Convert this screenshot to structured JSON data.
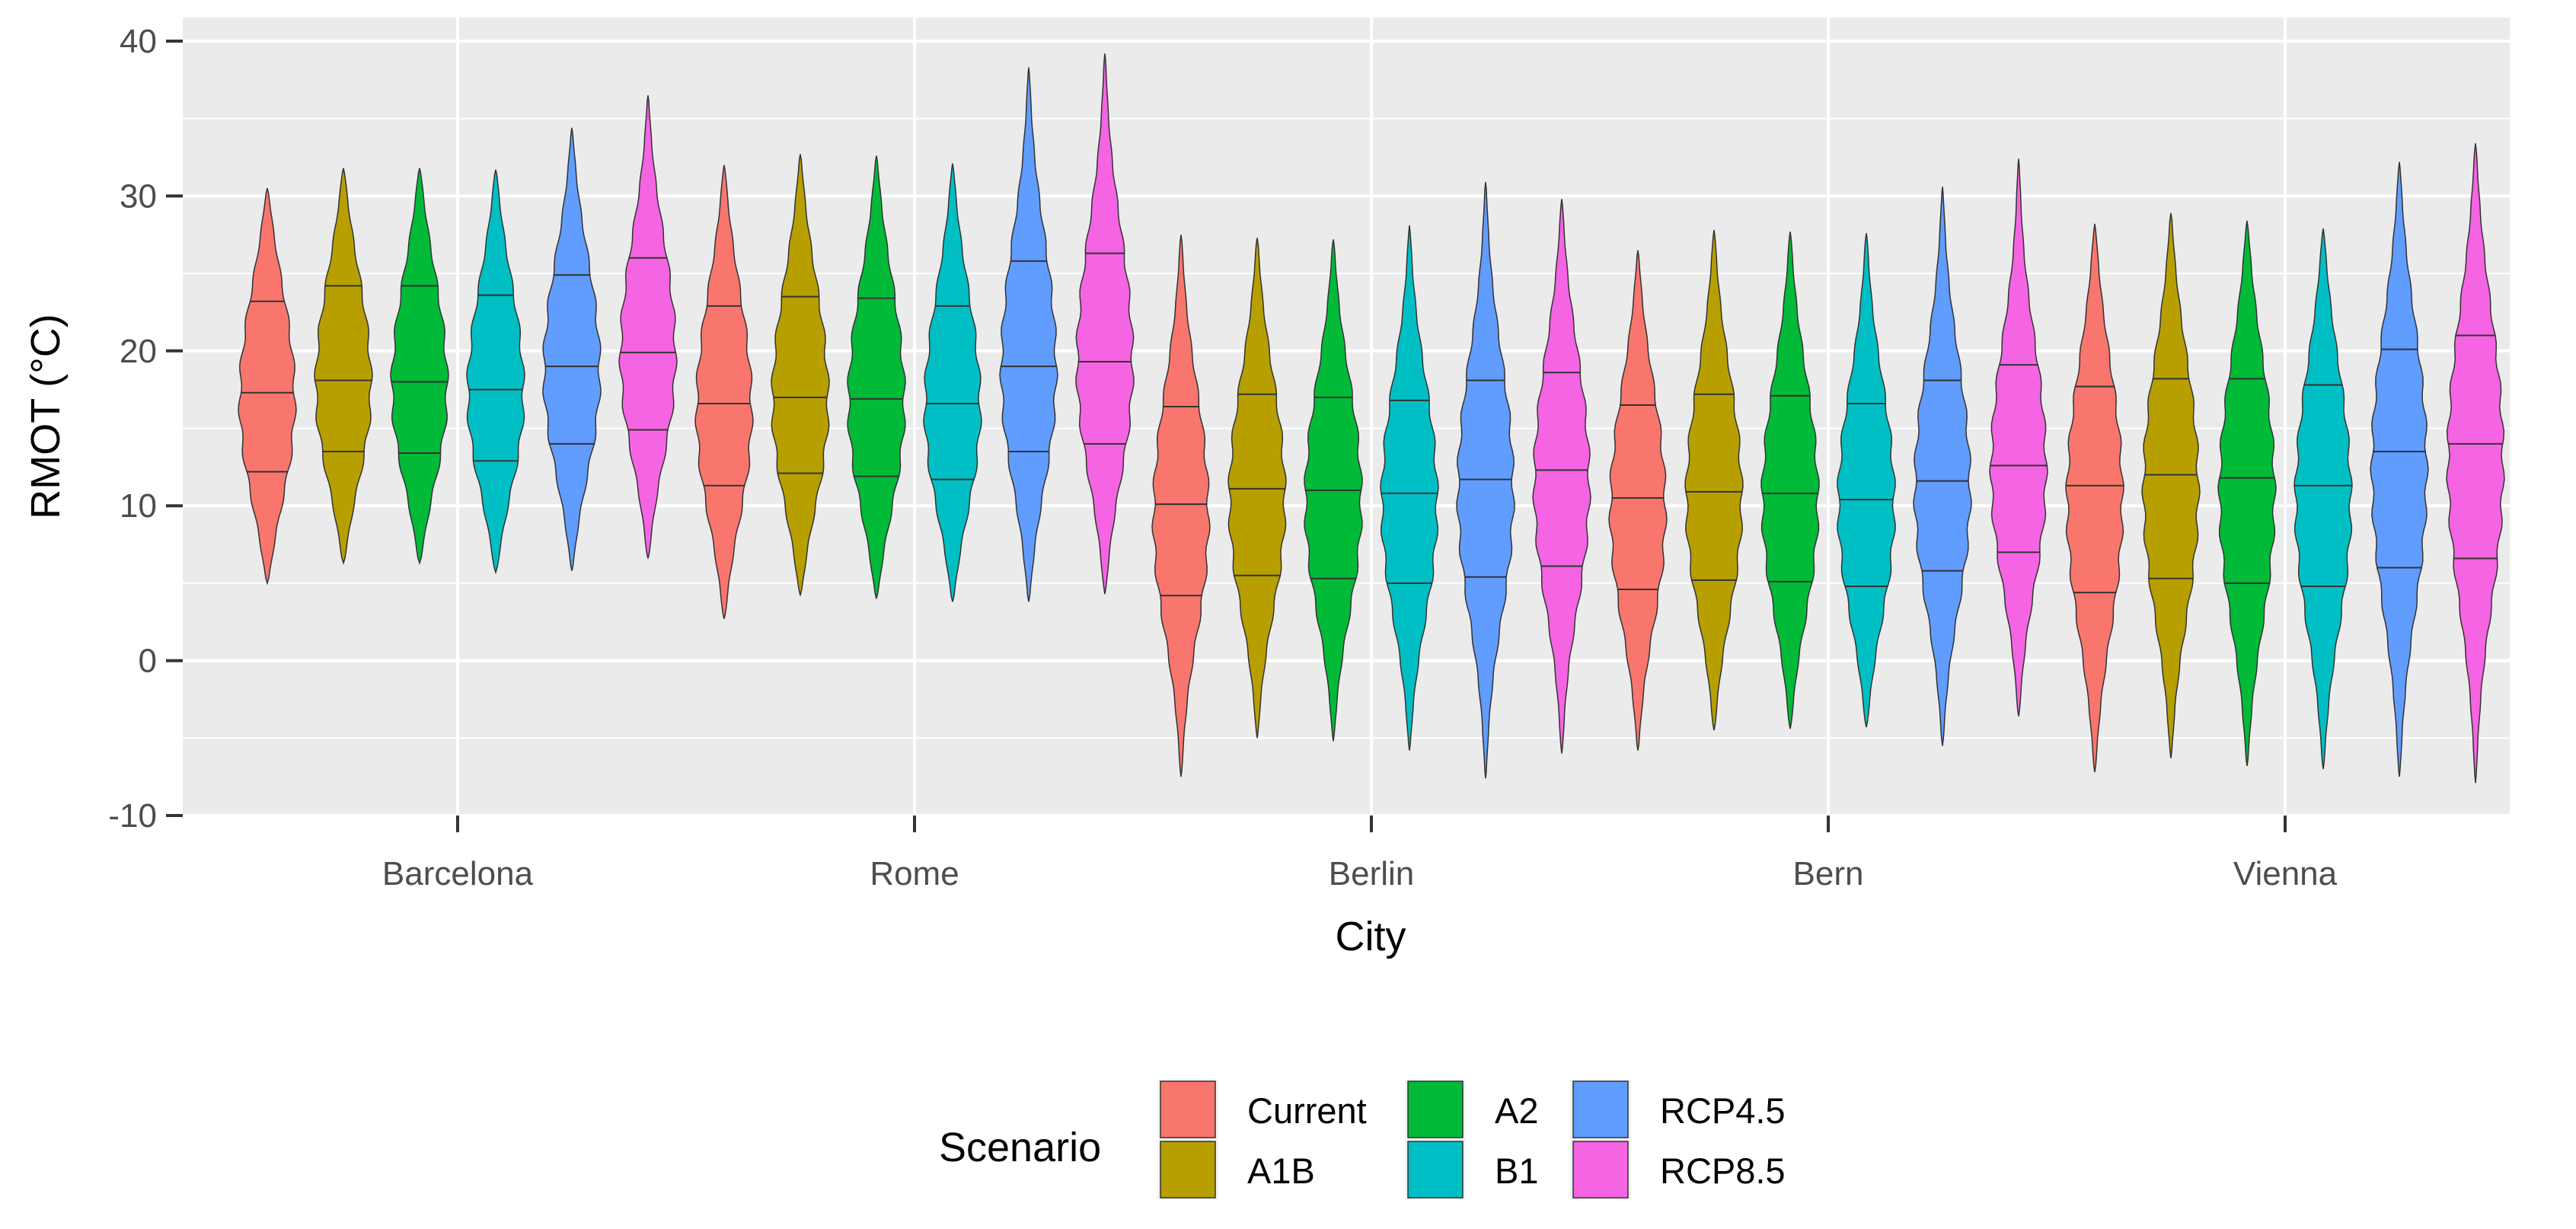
{
  "chart_data": {
    "type": "violin",
    "title": "",
    "xlabel": "City",
    "ylabel": "RMOT (°C)",
    "ylim": [
      -10,
      40
    ],
    "yticks": [
      -10,
      0,
      10,
      20,
      30,
      40
    ],
    "categories": [
      "Barcelona",
      "Rome",
      "Berlin",
      "Bern",
      "Vienna"
    ],
    "legend": {
      "title": "Scenario",
      "position": "bottom",
      "entries": [
        "Current",
        "A1B",
        "A2",
        "B1",
        "RCP4.5",
        "RCP8.5"
      ]
    },
    "series": [
      {
        "name": "Current",
        "color": "#F8766D",
        "values": [
          {
            "city": "Barcelona",
            "min": 5,
            "max": 30.5,
            "q1": 12.2,
            "median": 17.3,
            "q3": 23.2
          },
          {
            "city": "Rome",
            "min": 2.7,
            "max": 32,
            "q1": 11.3,
            "median": 16.6,
            "q3": 22.9
          },
          {
            "city": "Berlin",
            "min": -7.5,
            "max": 27.5,
            "q1": 4.2,
            "median": 10.1,
            "q3": 16.4
          },
          {
            "city": "Bern",
            "min": -5.8,
            "max": 26.5,
            "q1": 4.6,
            "median": 10.5,
            "q3": 16.5
          },
          {
            "city": "Vienna",
            "min": -7.2,
            "max": 28.2,
            "q1": 4.4,
            "median": 11.3,
            "q3": 17.7
          }
        ]
      },
      {
        "name": "A1B",
        "color": "#B79F00",
        "values": [
          {
            "city": "Barcelona",
            "min": 6.3,
            "max": 31.8,
            "q1": 13.5,
            "median": 18.1,
            "q3": 24.2
          },
          {
            "city": "Rome",
            "min": 4.2,
            "max": 32.7,
            "q1": 12.1,
            "median": 17,
            "q3": 23.5
          },
          {
            "city": "Berlin",
            "min": -5,
            "max": 27.3,
            "q1": 5.5,
            "median": 11.1,
            "q3": 17.2
          },
          {
            "city": "Bern",
            "min": -4.5,
            "max": 27.8,
            "q1": 5.2,
            "median": 10.9,
            "q3": 17.2
          },
          {
            "city": "Vienna",
            "min": -6.3,
            "max": 28.9,
            "q1": 5.3,
            "median": 12,
            "q3": 18.2
          }
        ]
      },
      {
        "name": "A2",
        "color": "#00BA38",
        "values": [
          {
            "city": "Barcelona",
            "min": 6.3,
            "max": 31.8,
            "q1": 13.4,
            "median": 18,
            "q3": 24.2
          },
          {
            "city": "Rome",
            "min": 4,
            "max": 32.6,
            "q1": 11.9,
            "median": 16.9,
            "q3": 23.4
          },
          {
            "city": "Berlin",
            "min": -5.2,
            "max": 27.2,
            "q1": 5.3,
            "median": 11,
            "q3": 17
          },
          {
            "city": "Bern",
            "min": -4.4,
            "max": 27.7,
            "q1": 5.1,
            "median": 10.8,
            "q3": 17.1
          },
          {
            "city": "Vienna",
            "min": -6.8,
            "max": 28.4,
            "q1": 5,
            "median": 11.8,
            "q3": 18.2
          }
        ]
      },
      {
        "name": "B1",
        "color": "#00BFC4",
        "values": [
          {
            "city": "Barcelona",
            "min": 5.7,
            "max": 31.7,
            "q1": 12.9,
            "median": 17.5,
            "q3": 23.6
          },
          {
            "city": "Rome",
            "min": 3.8,
            "max": 32.1,
            "q1": 11.7,
            "median": 16.6,
            "q3": 22.9
          },
          {
            "city": "Berlin",
            "min": -5.8,
            "max": 28.1,
            "q1": 5,
            "median": 10.8,
            "q3": 16.8
          },
          {
            "city": "Bern",
            "min": -4.3,
            "max": 27.6,
            "q1": 4.8,
            "median": 10.4,
            "q3": 16.6
          },
          {
            "city": "Vienna",
            "min": -7,
            "max": 27.9,
            "q1": 4.8,
            "median": 11.3,
            "q3": 17.8
          }
        ]
      },
      {
        "name": "RCP4.5",
        "color": "#619CFF",
        "values": [
          {
            "city": "Barcelona",
            "min": 5.8,
            "max": 34.4,
            "q1": 14,
            "median": 19,
            "q3": 24.9
          },
          {
            "city": "Rome",
            "min": 3.8,
            "max": 38.3,
            "q1": 13.5,
            "median": 19,
            "q3": 25.8
          },
          {
            "city": "Berlin",
            "min": -7.6,
            "max": 30.9,
            "q1": 5.4,
            "median": 11.7,
            "q3": 18.1
          },
          {
            "city": "Bern",
            "min": -5.5,
            "max": 30.6,
            "q1": 5.8,
            "median": 11.6,
            "q3": 18.1
          },
          {
            "city": "Vienna",
            "min": -7.5,
            "max": 32.2,
            "q1": 6,
            "median": 13.5,
            "q3": 20.1
          }
        ]
      },
      {
        "name": "RCP8.5",
        "color": "#F564E3",
        "values": [
          {
            "city": "Barcelona",
            "min": 6.6,
            "max": 36.5,
            "q1": 14.9,
            "median": 19.9,
            "q3": 26
          },
          {
            "city": "Rome",
            "min": 4.3,
            "max": 39.2,
            "q1": 14,
            "median": 19.3,
            "q3": 26.3
          },
          {
            "city": "Berlin",
            "min": -6,
            "max": 29.8,
            "q1": 6.1,
            "median": 12.3,
            "q3": 18.6
          },
          {
            "city": "Bern",
            "min": -3.6,
            "max": 32.4,
            "q1": 7,
            "median": 12.6,
            "q3": 19.1
          },
          {
            "city": "Vienna",
            "min": -7.9,
            "max": 33.4,
            "q1": 6.6,
            "median": 14,
            "q3": 21
          }
        ]
      }
    ]
  }
}
